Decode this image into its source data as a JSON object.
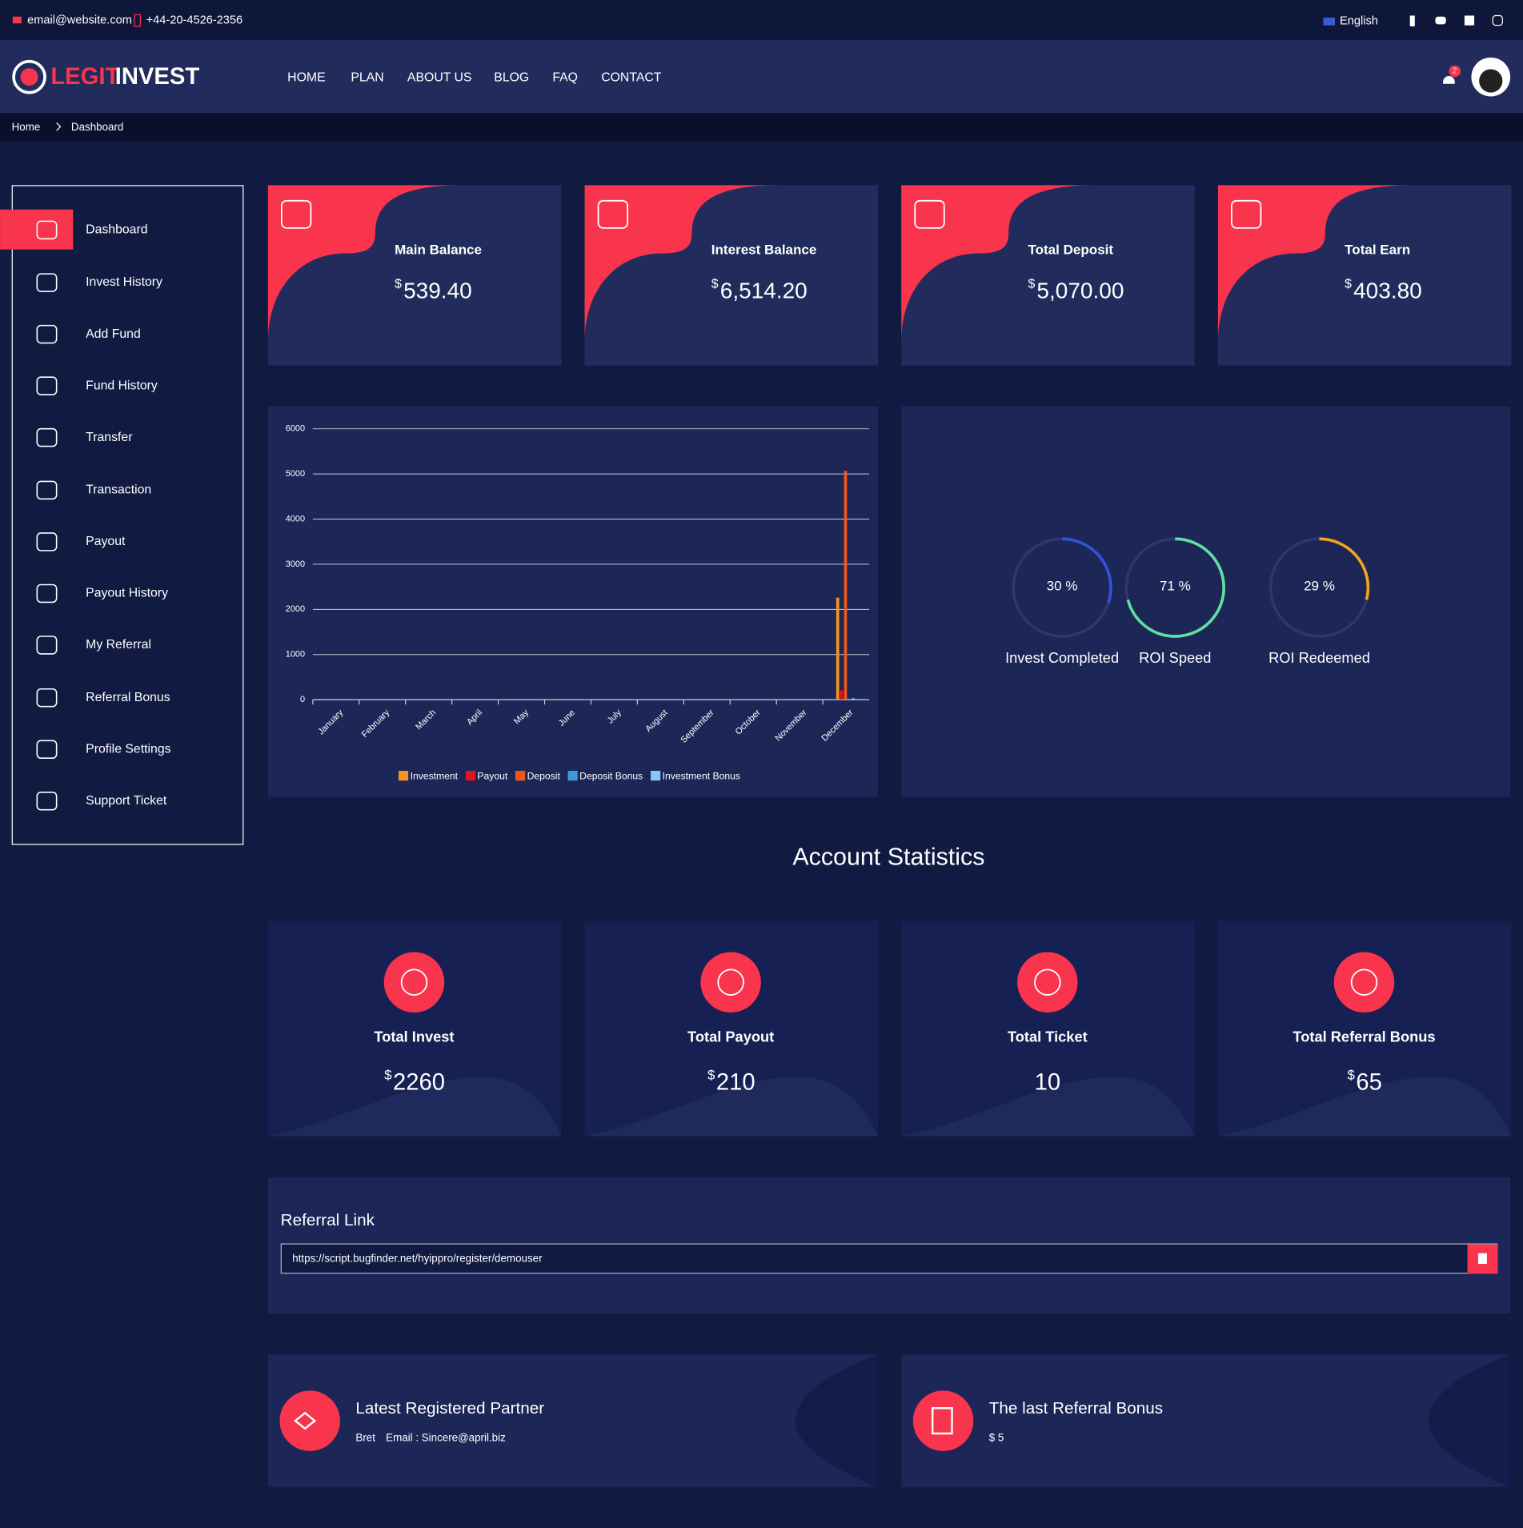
{
  "topbar": {
    "email": "email@website.com",
    "phone": "+44-20-4526-2356",
    "language": "English"
  },
  "header": {
    "logo_red": "LEGIT",
    "logo_white": "INVEST",
    "nav": [
      "HOME",
      "PLAN",
      "ABOUT US",
      "BLOG",
      "FAQ",
      "CONTACT"
    ],
    "notifications": "2"
  },
  "breadcrumb": [
    "Home",
    "Dashboard"
  ],
  "sidebar": {
    "active": 0,
    "items": [
      "Dashboard",
      "Invest History",
      "Add Fund",
      "Fund History",
      "Transfer",
      "Transaction",
      "Payout",
      "Payout History",
      "My Referral",
      "Referral Bonus",
      "Profile Settings",
      "Support Ticket"
    ]
  },
  "balance_cards": [
    {
      "title": "Main Balance",
      "symbol": "$",
      "amount": "539.40"
    },
    {
      "title": "Interest Balance",
      "symbol": "$",
      "amount": "6,514.20"
    },
    {
      "title": "Total Deposit",
      "symbol": "$",
      "amount": "5,070.00"
    },
    {
      "title": "Total Earn",
      "symbol": "$",
      "amount": "403.80"
    }
  ],
  "chart_data": {
    "type": "bar",
    "categories": [
      "January",
      "February",
      "March",
      "April",
      "May",
      "June",
      "July",
      "August",
      "September",
      "October",
      "November",
      "December"
    ],
    "series": [
      {
        "name": "Investment",
        "color": "#f7931e",
        "values": [
          0,
          0,
          0,
          0,
          0,
          0,
          0,
          0,
          0,
          0,
          0,
          2260
        ]
      },
      {
        "name": "Payout",
        "color": "#e8141c",
        "values": [
          0,
          0,
          0,
          0,
          0,
          0,
          0,
          0,
          0,
          0,
          0,
          210
        ]
      },
      {
        "name": "Deposit",
        "color": "#f2571a",
        "values": [
          0,
          0,
          0,
          0,
          0,
          0,
          0,
          0,
          0,
          0,
          0,
          5070
        ]
      },
      {
        "name": "Deposit Bonus",
        "color": "#3a9ad9",
        "values": [
          0,
          0,
          0,
          0,
          0,
          0,
          0,
          0,
          0,
          0,
          0,
          0
        ]
      },
      {
        "name": "Investment Bonus",
        "color": "#8ac8f2",
        "values": [
          0,
          0,
          0,
          0,
          0,
          0,
          0,
          0,
          0,
          0,
          0,
          30
        ]
      }
    ],
    "ylim": [
      0,
      6000
    ],
    "yticks": [
      0,
      1000,
      2000,
      3000,
      4000,
      5000,
      6000
    ],
    "grid": true
  },
  "progress": [
    {
      "value": 30,
      "label": "30 %",
      "name": "Invest Completed",
      "color": "#2f55d4"
    },
    {
      "value": 71,
      "label": "71 %",
      "name": "ROI Speed",
      "color": "#5ee0a0"
    },
    {
      "value": 29,
      "label": "29 %",
      "name": "ROI Redeemed",
      "color": "#f3a41b"
    }
  ],
  "statistics": {
    "title": "Account Statistics",
    "items": [
      {
        "title": "Total Invest",
        "symbol": "$",
        "amount": "2260"
      },
      {
        "title": "Total Payout",
        "symbol": "$",
        "amount": "210"
      },
      {
        "title": "Total Ticket",
        "amount": "10"
      },
      {
        "title": "Total Referral Bonus",
        "symbol": "$",
        "amount": "65"
      }
    ]
  },
  "referral": {
    "title": "Referral Link",
    "url": "https://script.bugfinder.net/hyippro/register/demouser"
  },
  "partner": {
    "title": "Latest Registered Partner",
    "name": "Bret",
    "email": "Email : Sincere@april.biz"
  },
  "last_bonus": {
    "title": "The last Referral Bonus",
    "amount": "$ 5"
  }
}
